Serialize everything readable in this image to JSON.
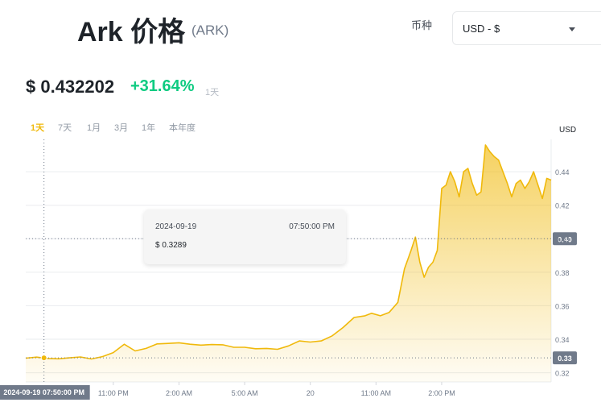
{
  "header": {
    "title": "Ark 价格",
    "symbol": "(ARK)",
    "currency_label": "币种",
    "currency_value": "USD - $"
  },
  "price": {
    "value": "$ 0.432202",
    "change": "+31.64%",
    "period": "1天"
  },
  "tabs": [
    {
      "label": "1天",
      "active": true
    },
    {
      "label": "7天",
      "active": false
    },
    {
      "label": "1月",
      "active": false
    },
    {
      "label": "3月",
      "active": false
    },
    {
      "label": "1年",
      "active": false
    },
    {
      "label": "本年度",
      "active": false
    }
  ],
  "tooltip": {
    "date": "2024-09-19",
    "time": "07:50:00 PM",
    "price": "$ 0.3289"
  },
  "colors": {
    "accent": "#f0b90b",
    "up": "#0ecb81",
    "axis_tag": "#707a8a"
  },
  "chart_data": {
    "type": "area",
    "ylabel": "USD",
    "yticks": [
      0.32,
      0.34,
      0.36,
      0.38,
      0.4,
      0.42,
      0.44
    ],
    "ylim": [
      0.3145,
      0.4593
    ],
    "xlim": [
      0,
      24
    ],
    "x_tick_labels": [
      {
        "x": 4,
        "label": "11:00 PM"
      },
      {
        "x": 7,
        "label": "2:00 AM"
      },
      {
        "x": 10,
        "label": "5:00 AM"
      },
      {
        "x": 13,
        "label": "20"
      },
      {
        "x": 16,
        "label": "11:00 AM"
      },
      {
        "x": 19,
        "label": "2:00 PM"
      }
    ],
    "crosshair": {
      "x": 0.833,
      "y": 0.3289,
      "label": "2024-09-19 07:50:00 PM"
    },
    "price_tags": [
      {
        "value": 0.4,
        "label": "0.40"
      },
      {
        "value": 0.3289,
        "label": "0.33"
      }
    ],
    "series": [
      {
        "x": [
          0,
          0.5,
          1,
          1.5,
          2,
          2.5,
          3,
          3.5,
          4,
          4.5,
          5,
          5.5,
          6,
          6.5,
          7,
          7.5,
          8,
          8.5,
          9,
          9.5,
          10,
          10.5,
          11,
          11.5,
          12,
          12.5,
          13,
          13.5,
          14,
          14.5,
          15,
          15.5,
          15.8,
          16.2,
          16.6,
          17,
          17.3,
          17.6,
          17.8,
          18,
          18.2,
          18.4,
          18.6,
          18.8,
          19,
          19.2,
          19.4,
          19.6,
          19.8,
          20,
          20.2,
          20.4,
          20.6,
          20.8,
          21,
          21.2,
          21.4,
          21.6,
          21.8,
          22,
          22.2,
          22.4,
          22.6,
          22.8,
          23,
          23.2,
          23.4,
          23.6,
          23.8,
          24
        ],
        "values": [
          0.3287,
          0.3293,
          0.3285,
          0.3283,
          0.3289,
          0.3294,
          0.3282,
          0.3296,
          0.332,
          0.337,
          0.333,
          0.3345,
          0.3372,
          0.3375,
          0.3379,
          0.337,
          0.3365,
          0.3368,
          0.3367,
          0.3352,
          0.3352,
          0.3343,
          0.3345,
          0.334,
          0.336,
          0.339,
          0.3383,
          0.339,
          0.342,
          0.347,
          0.353,
          0.354,
          0.3555,
          0.354,
          0.356,
          0.362,
          0.382,
          0.393,
          0.401,
          0.386,
          0.377,
          0.383,
          0.386,
          0.393,
          0.43,
          0.432,
          0.44,
          0.434,
          0.425,
          0.44,
          0.442,
          0.433,
          0.426,
          0.428,
          0.456,
          0.452,
          0.449,
          0.447,
          0.44,
          0.433,
          0.425,
          0.433,
          0.435,
          0.43,
          0.434,
          0.44,
          0.432,
          0.424,
          0.436,
          0.435
        ]
      }
    ]
  }
}
